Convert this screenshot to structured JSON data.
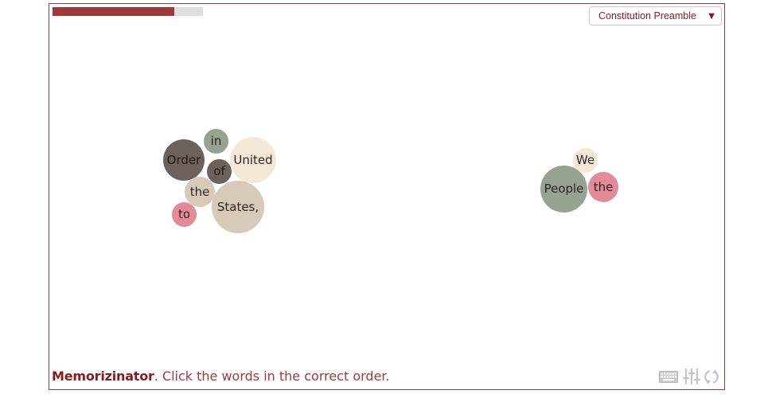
{
  "progress": {
    "fraction": 0.81
  },
  "select": {
    "value": "Constitution Preamble",
    "arrow": "▼"
  },
  "footer": {
    "brand": "Memorizinator",
    "instruction": ". Click the words in the correct order."
  },
  "icons": {
    "keyboard": "keyboard-icon",
    "settings": "settings-sliders-icon",
    "reset": "reset-icon"
  },
  "colors": {
    "accent": "#9e3a3c",
    "bubble_dark": "#6b615d",
    "bubble_sage": "#98a291",
    "bubble_cream": "#f5e8d6",
    "bubble_beige": "#d8cab9",
    "bubble_pink": "#e38b99"
  },
  "words": [
    {
      "text": "in",
      "color": "#98a291"
    },
    {
      "text": "Order",
      "color": "#6b615d"
    },
    {
      "text": "of",
      "color": "#6b615d"
    },
    {
      "text": "United",
      "color": "#f5e8d6"
    },
    {
      "text": "the",
      "color": "#d8cab9"
    },
    {
      "text": "States,",
      "color": "#d8cab9"
    },
    {
      "text": "to",
      "color": "#e38b99"
    },
    {
      "text": "We",
      "color": "#f5e8d6"
    },
    {
      "text": "People",
      "color": "#98a291"
    },
    {
      "text": "the",
      "color": "#e38b99"
    }
  ]
}
